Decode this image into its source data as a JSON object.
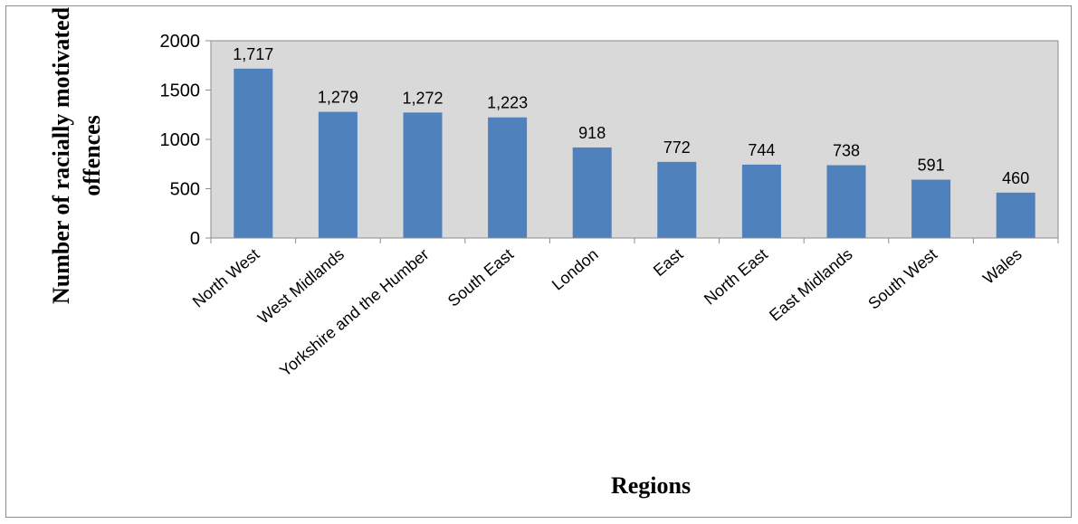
{
  "chart_data": {
    "type": "bar",
    "categories": [
      "North West",
      "West Midlands",
      "Yorkshire and the Humber",
      "South East",
      "London",
      "East",
      "North East",
      "East Midlands",
      "South West",
      "Wales"
    ],
    "values": [
      1717,
      1279,
      1272,
      1223,
      918,
      772,
      744,
      738,
      591,
      460
    ],
    "data_labels": [
      "1,717",
      "1,279",
      "1,272",
      "1,223",
      "918",
      "772",
      "744",
      "738",
      "591",
      "460"
    ],
    "xlabel": "Regions",
    "ylabel_lines": [
      "Number of racially motivated",
      "offences"
    ],
    "ylim": [
      0,
      2000
    ],
    "yticks": [
      "0",
      "500",
      "1000",
      "1500",
      "2000"
    ],
    "ytick_values": [
      0,
      500,
      1000,
      1500,
      2000
    ],
    "grid": false,
    "legend": "none",
    "colors": {
      "bar": "#4f81bd",
      "plot_background": "#d9d9d9",
      "border": "#8c8c8c"
    }
  }
}
